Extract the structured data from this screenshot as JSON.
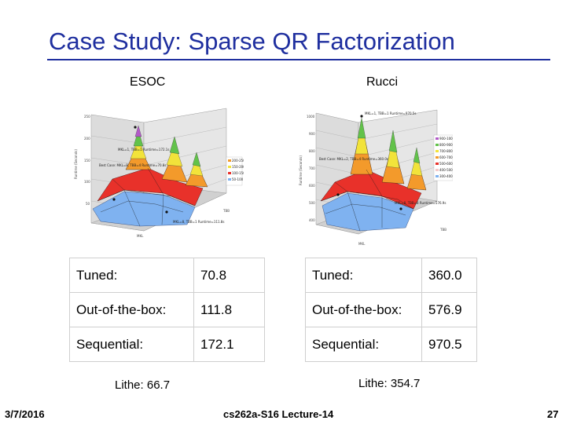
{
  "slide": {
    "title": "Case Study: Sparse QR Factorization",
    "date": "3/7/2016",
    "course": "cs262a-S16 Lecture-14",
    "page_number": "27",
    "accent_color": "#1f2f9f"
  },
  "left": {
    "caption": "ESOC",
    "lithe": "Lithe: 66.7",
    "rows": [
      {
        "label": "Tuned:",
        "value": "70.8"
      },
      {
        "label": "Out-of-the-box:",
        "value": "111.8"
      },
      {
        "label": "Sequential:",
        "value": "172.1"
      }
    ],
    "plot": {
      "y_ticks": [
        "250",
        "200",
        "150",
        "100",
        "50"
      ],
      "y_axis_label": "Runtime (Seconds)",
      "x_axis_label": "MKL",
      "z_axis_label": "TBB",
      "annotation_top": "MKL=1, TBB=1 Runtime=172.1s",
      "annotation_best": "Best Case: MKL=8, TBB=4 Runtime=70.8s",
      "annotation_bottom": "MKL=8, TBB=1 Runtime=111.8s",
      "legend": [
        "200-250",
        "150-200",
        "100-150",
        "50-100"
      ]
    }
  },
  "right": {
    "caption": "Rucci",
    "lithe": "Lithe: 354.7",
    "rows": [
      {
        "label": "Tuned:",
        "value": "360.0"
      },
      {
        "label": "Out-of-the-box:",
        "value": "576.9"
      },
      {
        "label": "Sequential:",
        "value": "970.5"
      }
    ],
    "plot": {
      "y_ticks": [
        "1000",
        "900",
        "800",
        "700",
        "600",
        "500",
        "400"
      ],
      "y_axis_label": "Runtime (Seconds)",
      "x_axis_label": "MKL",
      "z_axis_label": "TBB",
      "annotation_top": "MKL=1, TBB=1 Runtime=970.5s",
      "annotation_best": "Best Case: MKL=2, TBB=4 Runtime=360.0s",
      "annotation_bottom": "MKL=8, TBB=8 Runtime=576.9s",
      "legend": [
        "900-1000",
        "800-900",
        "700-800",
        "600-700",
        "500-600",
        "400-500",
        "300-400"
      ]
    }
  }
}
